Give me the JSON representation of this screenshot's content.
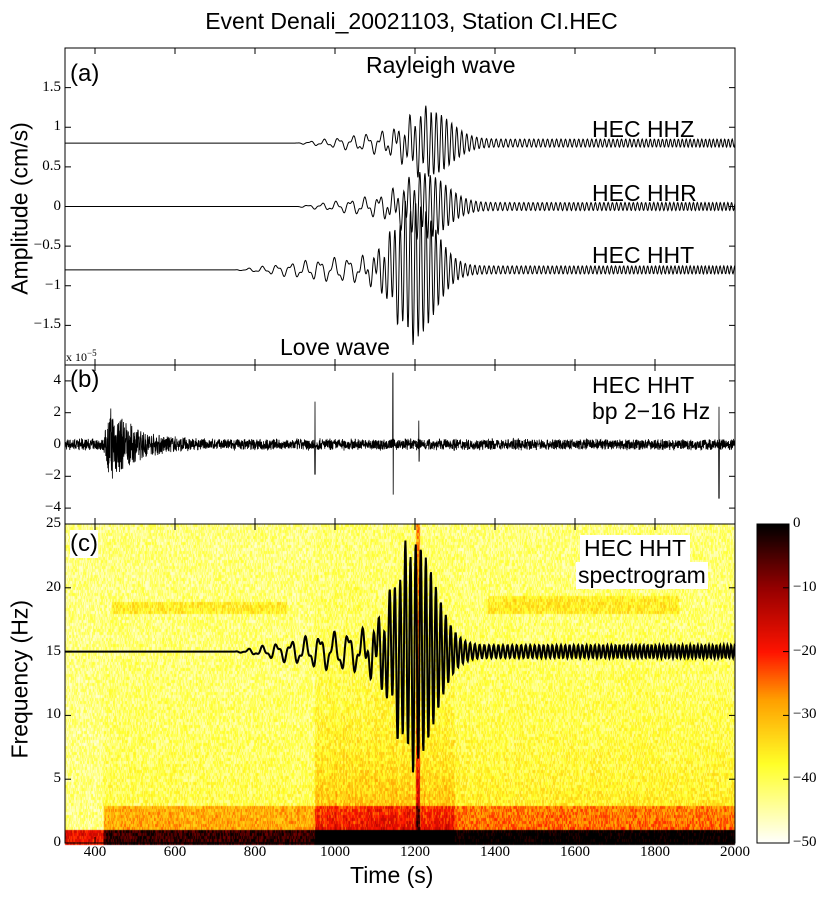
{
  "title": "Event Denali_20021103, Station CI.HEC",
  "chart_data": [
    {
      "panel": "(a)",
      "type": "line",
      "title": "Rayleigh wave",
      "annotation": "Love wave",
      "ylabel": "Amplitude (cm/s)",
      "scale_note": "x 10^-5",
      "scale_base": "x 10",
      "scale_exp": "−5",
      "xlim": [
        325,
        2000
      ],
      "ylim": [
        -2,
        2
      ],
      "yticks": [
        "1.5",
        "1",
        "0.5",
        "0",
        "−0.5",
        "−1",
        "−1.5"
      ],
      "ytick_values": [
        1.5,
        1,
        0.5,
        0,
        -0.5,
        -1,
        -1.5
      ],
      "series": [
        {
          "name": "HEC HHZ",
          "offset": 0.8,
          "onset": 900,
          "peak_time": 1240,
          "peak_amp": 0.35,
          "coda_amp": 0.05
        },
        {
          "name": "HEC HHR",
          "offset": 0,
          "onset": 900,
          "peak_time": 1230,
          "peak_amp": 0.35,
          "coda_amp": 0.05
        },
        {
          "name": "HEC HHT",
          "offset": -0.8,
          "onset": 750,
          "peak_time": 1200,
          "peak_amp": 0.8,
          "coda_amp": 0.05
        }
      ]
    },
    {
      "panel": "(b)",
      "type": "line",
      "label1": "HEC HHT",
      "label2": "bp 2−16 Hz",
      "xlim": [
        325,
        2000
      ],
      "ylim": [
        -5,
        5
      ],
      "yticks": [
        "4",
        "2",
        "0",
        "−2",
        "−4"
      ],
      "ytick_values": [
        4,
        2,
        0,
        -2,
        -4
      ],
      "noise_amp": 0.4,
      "burst": {
        "time": 440,
        "amp": 2.5
      },
      "spikes": [
        {
          "time": 950,
          "amp": 2.7
        },
        {
          "time": 1145,
          "amp": 4.5
        },
        {
          "time": 1210,
          "amp": 1.5
        },
        {
          "time": 1960,
          "amp": -3.4
        }
      ]
    },
    {
      "panel": "(c)",
      "type": "heatmap",
      "label1": "HEC HHT",
      "label2": "spectrogram",
      "ylabel": "Frequency (Hz)",
      "xlabel": "Time (s)",
      "xlim": [
        325,
        2000
      ],
      "ylim": [
        0,
        25
      ],
      "yticks": [
        "25",
        "20",
        "15",
        "10",
        "5",
        "0"
      ],
      "ytick_values": [
        25,
        20,
        15,
        10,
        5,
        0
      ],
      "xticks": [
        "400",
        "600",
        "800",
        "1000",
        "1200",
        "1400",
        "1600",
        "1800",
        "2000"
      ],
      "xtick_values": [
        400,
        600,
        800,
        1000,
        1200,
        1400,
        1600,
        1800,
        2000
      ],
      "overlay_trace": {
        "offset_hz": 15,
        "name": "HEC HHT"
      },
      "colorbar": {
        "range": [
          -50,
          0
        ],
        "ticks": [
          "0",
          "−10",
          "−20",
          "−30",
          "−40",
          "−50"
        ],
        "tick_values": [
          0,
          -10,
          -20,
          -30,
          -40,
          -50
        ]
      }
    }
  ]
}
